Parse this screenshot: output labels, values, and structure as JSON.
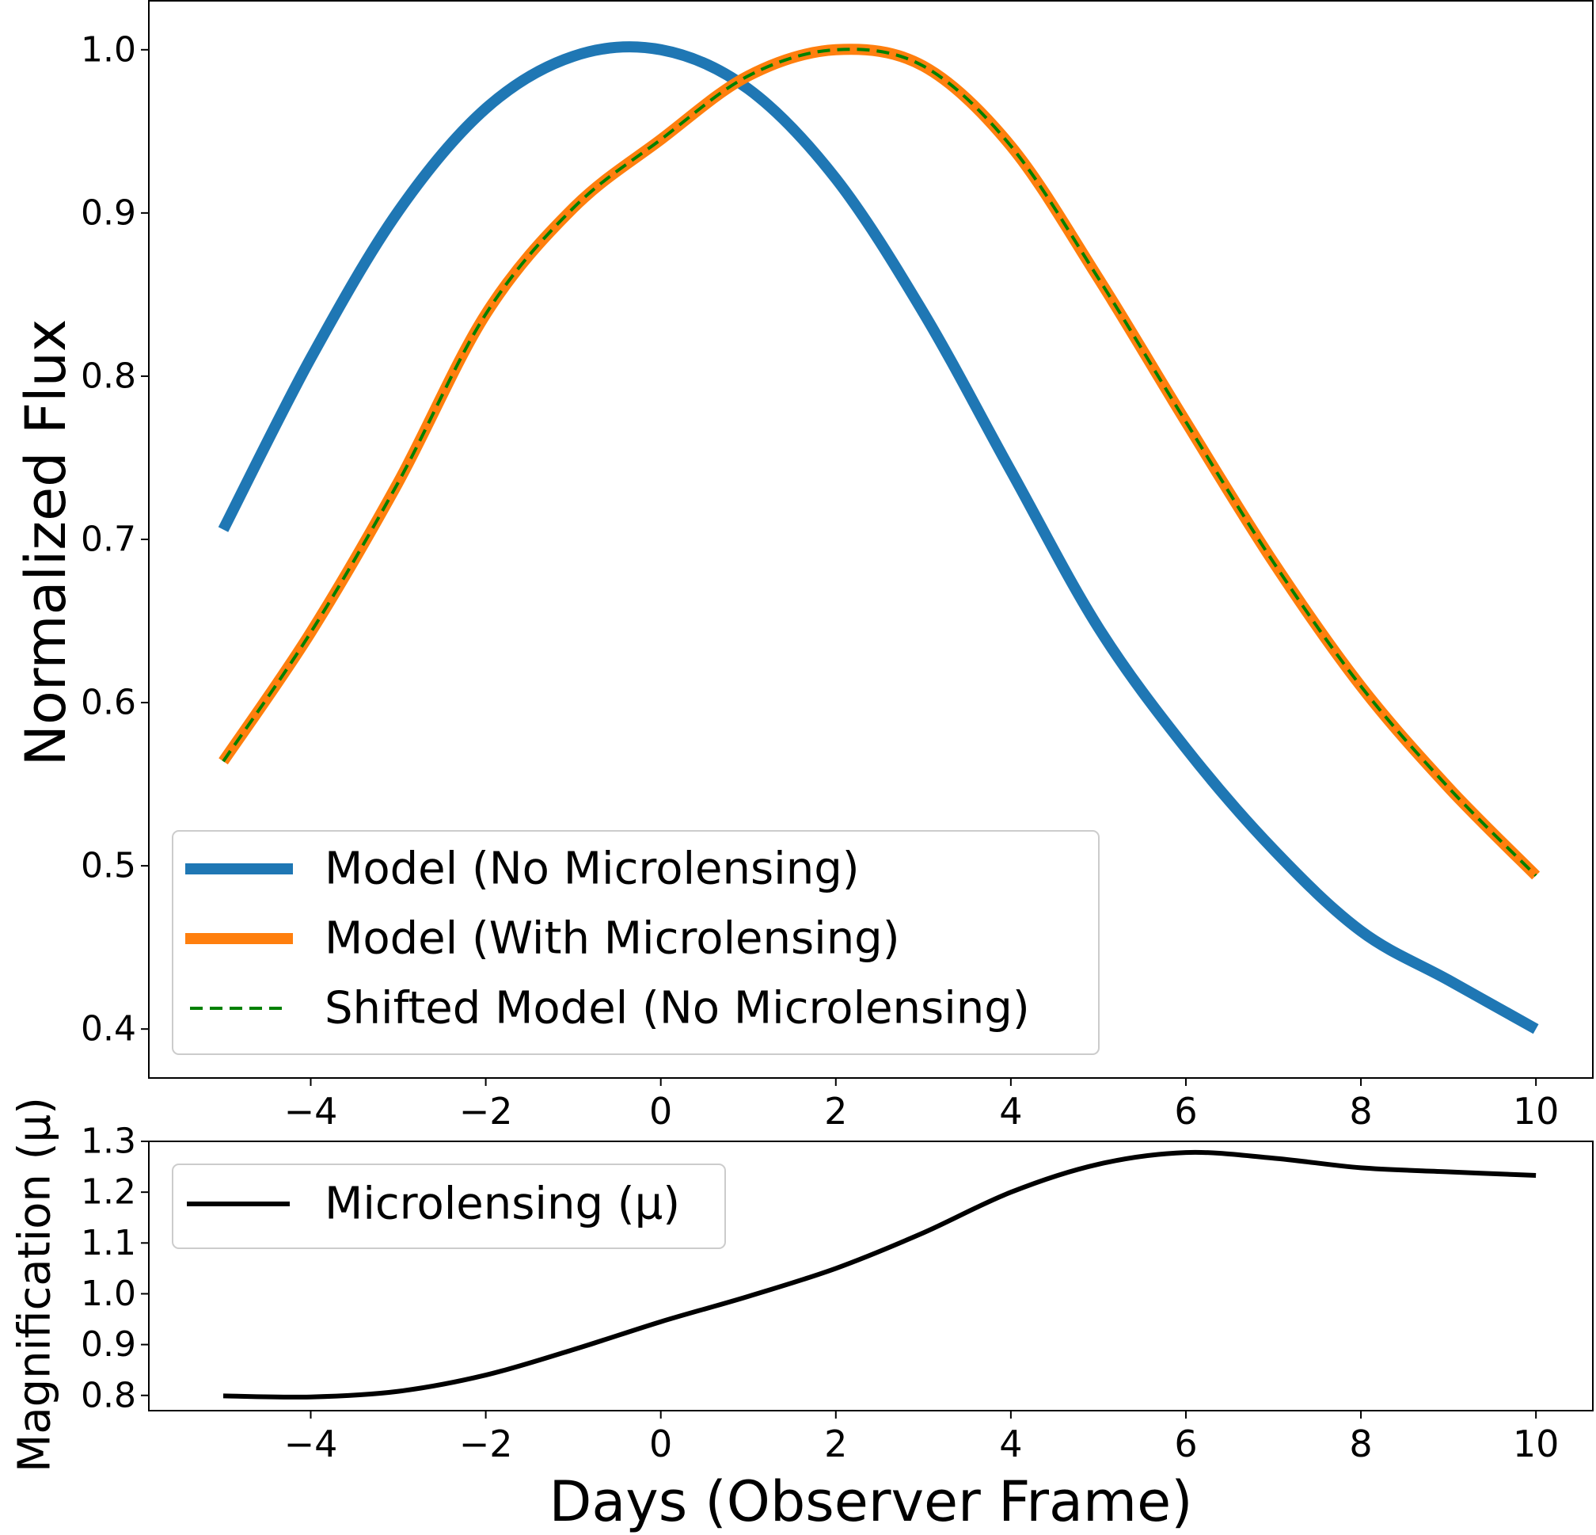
{
  "chart_data": [
    {
      "type": "line",
      "xlabel": "",
      "ylabel": "Normalized Flux",
      "xlim": [
        -5.85,
        10.65
      ],
      "ylim": [
        0.37,
        1.03
      ],
      "xticks": [
        "−4",
        "−2",
        "0",
        "2",
        "4",
        "6",
        "8",
        "10"
      ],
      "xtick_values": [
        -4,
        -2,
        0,
        2,
        4,
        6,
        8,
        10
      ],
      "yticks": [
        "0.4",
        "0.5",
        "0.6",
        "0.7",
        "0.8",
        "0.9",
        "1.0"
      ],
      "ytick_values": [
        0.4,
        0.5,
        0.6,
        0.7,
        0.8,
        0.9,
        1.0
      ],
      "grid": false,
      "legend_position": "lower-left",
      "x": [
        -5,
        -4,
        -3,
        -2,
        -1,
        0,
        1,
        2,
        3,
        4,
        5,
        6,
        7,
        8,
        9,
        10
      ],
      "series": [
        {
          "name": "Model (No Microlensing)",
          "color": "#1f77b4",
          "style": "solid",
          "values": [
            0.706,
            0.811,
            0.901,
            0.964,
            0.996,
            1.0,
            0.976,
            0.921,
            0.839,
            0.742,
            0.646,
            0.572,
            0.51,
            0.46,
            0.43,
            0.4
          ]
        },
        {
          "name": "Model (With Microlensing)",
          "color": "#ff7f0e",
          "style": "solid",
          "values": [
            0.564,
            0.643,
            0.735,
            0.838,
            0.903,
            0.945,
            0.984,
            1.0,
            0.99,
            0.941,
            0.86,
            0.772,
            0.686,
            0.61,
            0.548,
            0.494
          ]
        },
        {
          "name": "Shifted Model (No Microlensing)",
          "color": "#008000",
          "style": "dashed",
          "values": [
            0.564,
            0.643,
            0.735,
            0.838,
            0.903,
            0.945,
            0.984,
            1.0,
            0.99,
            0.941,
            0.86,
            0.772,
            0.686,
            0.61,
            0.548,
            0.494
          ]
        }
      ]
    },
    {
      "type": "line",
      "xlabel": "Days (Observer Frame)",
      "ylabel": "Magnification (μ)",
      "xlim": [
        -5.85,
        10.65
      ],
      "ylim": [
        0.77,
        1.3
      ],
      "xticks": [
        "−4",
        "−2",
        "0",
        "2",
        "4",
        "6",
        "8",
        "10"
      ],
      "xtick_values": [
        -4,
        -2,
        0,
        2,
        4,
        6,
        8,
        10
      ],
      "yticks": [
        "0.8",
        "0.9",
        "1.0",
        "1.1",
        "1.2",
        "1.3"
      ],
      "ytick_values": [
        0.8,
        0.9,
        1.0,
        1.1,
        1.2,
        1.3
      ],
      "grid": false,
      "legend_position": "upper-left",
      "x": [
        -5,
        -4,
        -3,
        -2,
        -1,
        0,
        1,
        2,
        3,
        4,
        5,
        6,
        7,
        8,
        9,
        10
      ],
      "series": [
        {
          "name": "Microlensing (μ)",
          "color": "#000000",
          "style": "solid",
          "values": [
            0.799,
            0.797,
            0.808,
            0.84,
            0.89,
            0.945,
            0.995,
            1.05,
            1.12,
            1.2,
            1.255,
            1.278,
            1.267,
            1.248,
            1.24,
            1.233
          ]
        }
      ]
    }
  ]
}
